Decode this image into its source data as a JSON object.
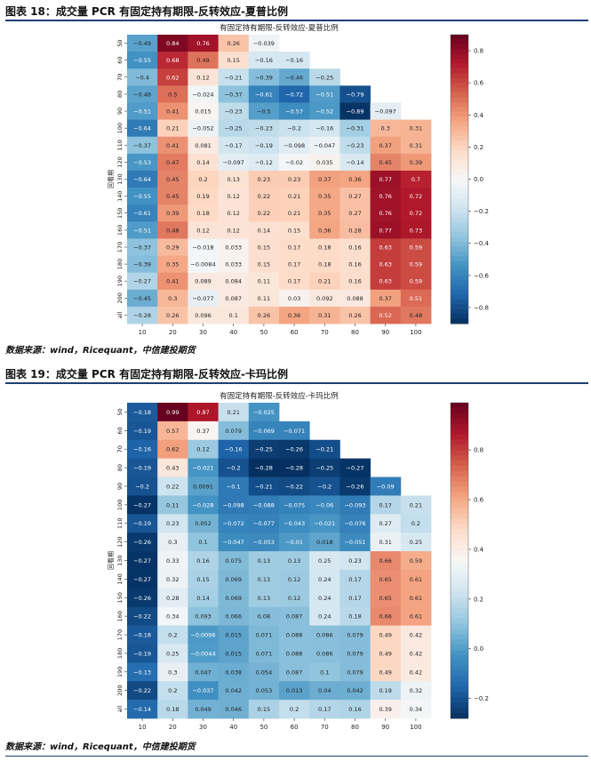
{
  "figure1": {
    "caption": "图表 18：成交量 PCR 有固定持有期限-反转效应-夏普比例",
    "source": "数据来源：wind，Ricequant，中信建投期货"
  },
  "figure2": {
    "caption": "图表 19：成交量 PCR 有固定持有期限-反转效应-卡玛比例",
    "source": "数据来源：wind，Ricequant，中信建投期货"
  },
  "chart_data": [
    {
      "type": "heatmap",
      "title": "有固定持有期限-反转效应-夏普比例",
      "ylabel": "回看期",
      "xlabel": "",
      "x": [
        "10",
        "20",
        "30",
        "40",
        "50",
        "60",
        "70",
        "80",
        "90",
        "100"
      ],
      "y": [
        "50",
        "60",
        "70",
        "80",
        "90",
        "100",
        "110",
        "120",
        "130",
        "140",
        "150",
        "160",
        "170",
        "180",
        "190",
        "200",
        "all"
      ],
      "colormap": "RdBu_r",
      "vmin": -0.9,
      "vmax": 0.9,
      "colorbar_ticks": [
        0.8,
        0.6,
        0.4,
        0.2,
        0.0,
        -0.2,
        -0.4,
        -0.6,
        -0.8
      ],
      "colorbar_labels": [
        "0.8",
        "0.6",
        "0.4",
        "0.2",
        "0.0",
        "−0.2",
        "−0.4",
        "−0.6",
        "−0.8"
      ],
      "values": [
        [
          "-0.49",
          "0.84",
          "0.76",
          "0.26",
          "-0.039",
          null,
          null,
          null,
          null,
          null
        ],
        [
          "-0.55",
          "0.68",
          "0.49",
          "0.15",
          "-0.16",
          "-0.16",
          null,
          null,
          null,
          null
        ],
        [
          "-0.4",
          "0.62",
          "0.12",
          "-0.21",
          "-0.39",
          "-0.46",
          "-0.25",
          null,
          null,
          null
        ],
        [
          "-0.48",
          "0.5",
          "-0.024",
          "-0.37",
          "-0.61",
          "-0.72",
          "-0.51",
          "-0.79",
          null,
          null
        ],
        [
          "-0.51",
          "0.41",
          "0.015",
          "-0.23",
          "-0.5",
          "-0.57",
          "-0.52",
          "-0.89",
          "-0.097",
          null
        ],
        [
          "-0.64",
          "0.21",
          "-0.052",
          "-0.25",
          "-0.23",
          "-0.2",
          "-0.16",
          "-0.31",
          "0.3",
          "0.31"
        ],
        [
          "-0.37",
          "0.41",
          "0.081",
          "-0.17",
          "-0.19",
          "-0.098",
          "-0.047",
          "-0.23",
          "0.37",
          "0.31"
        ],
        [
          "-0.53",
          "0.47",
          "0.14",
          "-0.097",
          "-0.12",
          "-0.02",
          "0.035",
          "-0.14",
          "0.45",
          "0.39"
        ],
        [
          "-0.64",
          "0.45",
          "0.2",
          "0.13",
          "0.23",
          "0.23",
          "0.37",
          "0.36",
          "0.77",
          "0.7"
        ],
        [
          "-0.55",
          "0.45",
          "0.19",
          "0.12",
          "0.22",
          "0.21",
          "0.35",
          "0.27",
          "0.76",
          "0.72"
        ],
        [
          "-0.61",
          "0.39",
          "0.18",
          "0.12",
          "0.22",
          "0.21",
          "0.35",
          "0.27",
          "0.76",
          "0.72"
        ],
        [
          "-0.51",
          "0.48",
          "0.12",
          "0.12",
          "0.14",
          "0.15",
          "0.36",
          "0.28",
          "0.77",
          "0.73"
        ],
        [
          "-0.37",
          "0.29",
          "-0.018",
          "0.033",
          "0.15",
          "0.17",
          "0.18",
          "0.16",
          "0.63",
          "0.59"
        ],
        [
          "-0.39",
          "0.35",
          "-0.0084",
          "0.033",
          "0.15",
          "0.17",
          "0.18",
          "0.16",
          "0.63",
          "0.59"
        ],
        [
          "-0.27",
          "0.41",
          "0.089",
          "0.084",
          "0.11",
          "0.17",
          "0.21",
          "0.16",
          "0.63",
          "0.59"
        ],
        [
          "-0.45",
          "0.3",
          "-0.077",
          "0.087",
          "0.11",
          "0.03",
          "0.092",
          "0.088",
          "0.37",
          "0.51"
        ],
        [
          "-0.28",
          "0.26",
          "0.096",
          "0.1",
          "0.26",
          "0.36",
          "0.31",
          "0.26",
          "0.52",
          "0.48"
        ]
      ]
    },
    {
      "type": "heatmap",
      "title": "有固定持有期限-反转效应-卡玛比例",
      "ylabel": "回看期",
      "xlabel": "",
      "x": [
        "10",
        "20",
        "30",
        "40",
        "50",
        "60",
        "70",
        "80",
        "90",
        "100"
      ],
      "y": [
        "50",
        "60",
        "70",
        "80",
        "90",
        "100",
        "110",
        "120",
        "130",
        "140",
        "150",
        "160",
        "170",
        "180",
        "190",
        "200",
        "all"
      ],
      "colormap": "RdBu_r",
      "vmin": -0.28,
      "vmax": 0.99,
      "colorbar_ticks": [
        0.8,
        0.6,
        0.4,
        0.2,
        0.0,
        -0.2
      ],
      "colorbar_labels": [
        "0.8",
        "0.6",
        "0.4",
        "0.2",
        "0.0",
        "−0.2"
      ],
      "values": [
        [
          "-0.18",
          "0.99",
          "0.87",
          "0.21",
          "-0.025",
          null,
          null,
          null,
          null,
          null
        ],
        [
          "-0.19",
          "0.57",
          "0.37",
          "0.079",
          "-0.069",
          "-0.071",
          null,
          null,
          null,
          null
        ],
        [
          "-0.16",
          "0.62",
          "0.12",
          "-0.16",
          "-0.25",
          "-0.26",
          "-0.21",
          null,
          null,
          null
        ],
        [
          "-0.19",
          "0.43",
          "-0.021",
          "-0.2",
          "-0.28",
          "-0.28",
          "-0.25",
          "-0.27",
          null,
          null
        ],
        [
          "-0.2",
          "0.22",
          "0.0091",
          "-0.1",
          "-0.21",
          "-0.22",
          "-0.2",
          "-0.26",
          "-0.09",
          null
        ],
        [
          "-0.27",
          "0.11",
          "-0.028",
          "-0.098",
          "-0.088",
          "-0.075",
          "-0.06",
          "-0.093",
          "0.17",
          "0.21"
        ],
        [
          "-0.19",
          "0.23",
          "0.052",
          "-0.072",
          "-0.077",
          "-0.043",
          "-0.021",
          "-0.076",
          "0.27",
          "0.2"
        ],
        [
          "-0.26",
          "0.3",
          "0.1",
          "-0.047",
          "-0.053",
          "-0.01",
          "0.018",
          "-0.051",
          "0.31",
          "0.25"
        ],
        [
          "-0.27",
          "0.33",
          "0.16",
          "0.075",
          "0.13",
          "0.13",
          "0.25",
          "0.23",
          "0.66",
          "0.59"
        ],
        [
          "-0.27",
          "0.32",
          "0.15",
          "0.069",
          "0.13",
          "0.12",
          "0.24",
          "0.17",
          "0.65",
          "0.61"
        ],
        [
          "-0.26",
          "0.28",
          "0.14",
          "0.069",
          "0.13",
          "0.12",
          "0.24",
          "0.17",
          "0.65",
          "0.61"
        ],
        [
          "-0.22",
          "0.34",
          "0.093",
          "0.066",
          "0.08",
          "0.087",
          "0.24",
          "0.18",
          "0.66",
          "0.61"
        ],
        [
          "-0.18",
          "0.2",
          "-0.0096",
          "0.015",
          "0.071",
          "0.088",
          "0.086",
          "0.079",
          "0.49",
          "0.42"
        ],
        [
          "-0.19",
          "0.25",
          "-0.0044",
          "0.015",
          "0.071",
          "0.088",
          "0.086",
          "0.079",
          "0.49",
          "0.42"
        ],
        [
          "-0.13",
          "0.3",
          "0.047",
          "0.038",
          "0.054",
          "0.087",
          "0.1",
          "0.079",
          "0.49",
          "0.42"
        ],
        [
          "-0.22",
          "0.2",
          "-0.037",
          "0.042",
          "0.053",
          "0.013",
          "0.04",
          "0.042",
          "0.19",
          "0.32"
        ],
        [
          "-0.14",
          "0.18",
          "0.049",
          "0.046",
          "0.15",
          "0.2",
          "0.17",
          "0.16",
          "0.39",
          "0.34"
        ]
      ]
    }
  ]
}
